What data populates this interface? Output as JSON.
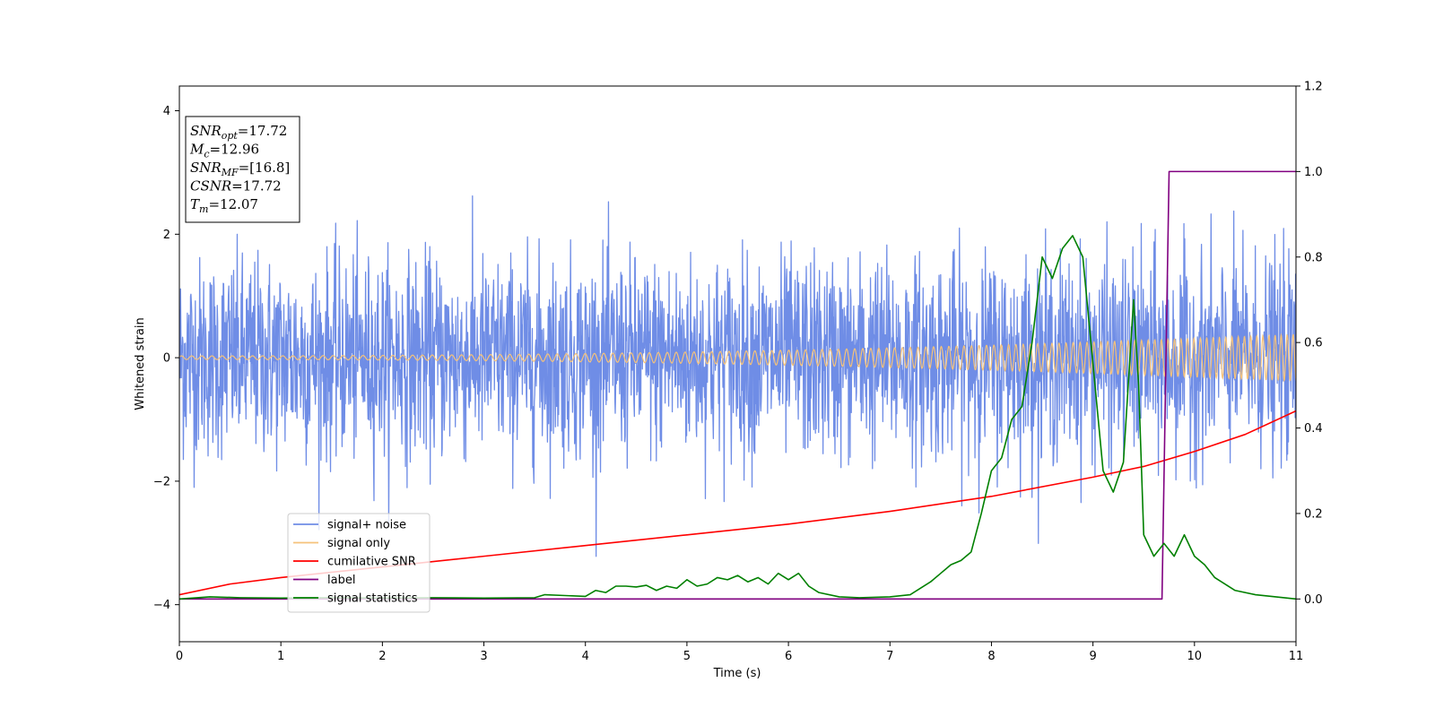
{
  "chart_data": {
    "type": "line",
    "title": "",
    "xlabel": "Time (s)",
    "ylabel": "Whitened strain",
    "y2label": "",
    "xlim": [
      0,
      11
    ],
    "ylim": [
      -4.6,
      4.4
    ],
    "y2lim": [
      -0.1,
      1.2
    ],
    "xticks": [
      "0",
      "1",
      "2",
      "3",
      "4",
      "5",
      "6",
      "7",
      "8",
      "9",
      "10",
      "11"
    ],
    "yticks": [
      "−4",
      "−2",
      "0",
      "2",
      "4"
    ],
    "y2ticks": [
      "0.0",
      "0.2",
      "0.4",
      "0.6",
      "0.8",
      "1.0",
      "1.2"
    ],
    "grid": false,
    "legend_position": "lower-left",
    "annotation": {
      "lines": [
        {
          "sym": "SNR",
          "sub": "opt",
          "val": "=17.72"
        },
        {
          "sym": "M",
          "sub": "c",
          "val": "=12.96"
        },
        {
          "sym": "SNR",
          "sub": "MF",
          "val": "=[16.8]"
        },
        {
          "sym": "CSNR",
          "sub": "",
          "val": "=17.72"
        },
        {
          "sym": "T",
          "sub": "m",
          "val": "=12.07"
        }
      ]
    },
    "series": [
      {
        "name": "signal+ noise",
        "color": "#6f8de6",
        "axis": "left",
        "kind": "noise",
        "std": 0.8,
        "range": [
          -4.0,
          4.0
        ]
      },
      {
        "name": "signal only",
        "color": "#f5c27a",
        "axis": "left",
        "kind": "chirp",
        "amp_start": 0.03,
        "amp_end": 0.38
      },
      {
        "name": "cumilative SNR",
        "color": "#ff0000",
        "axis": "right",
        "x": [
          0,
          0.5,
          1,
          2,
          3,
          4,
          5,
          6,
          7,
          8,
          9,
          9.5,
          10,
          10.5,
          11
        ],
        "y": [
          0.01,
          0.035,
          0.05,
          0.075,
          0.1,
          0.125,
          0.15,
          0.175,
          0.205,
          0.24,
          0.285,
          0.31,
          0.345,
          0.385,
          0.44
        ]
      },
      {
        "name": "label",
        "color": "#800080",
        "axis": "right",
        "x": [
          0,
          9.68,
          9.75,
          11
        ],
        "y": [
          0.0,
          0.0,
          1.0,
          1.0
        ]
      },
      {
        "name": "signal statistics",
        "color": "#008000",
        "axis": "right",
        "x": [
          0,
          0.3,
          0.6,
          1.0,
          1.5,
          2.0,
          2.5,
          3.0,
          3.5,
          3.6,
          3.8,
          4.0,
          4.1,
          4.2,
          4.3,
          4.4,
          4.5,
          4.6,
          4.7,
          4.8,
          4.9,
          5.0,
          5.1,
          5.2,
          5.3,
          5.4,
          5.5,
          5.6,
          5.7,
          5.8,
          5.9,
          6.0,
          6.1,
          6.2,
          6.3,
          6.5,
          6.7,
          7.0,
          7.2,
          7.4,
          7.5,
          7.6,
          7.7,
          7.8,
          7.9,
          8.0,
          8.1,
          8.2,
          8.3,
          8.4,
          8.5,
          8.6,
          8.7,
          8.8,
          8.9,
          9.0,
          9.1,
          9.2,
          9.3,
          9.4,
          9.45,
          9.5,
          9.6,
          9.7,
          9.8,
          9.9,
          10.0,
          10.1,
          10.2,
          10.4,
          10.6,
          10.8,
          11.0
        ],
        "y": [
          0.0,
          0.005,
          0.003,
          0.002,
          0.003,
          0.002,
          0.003,
          0.002,
          0.003,
          0.01,
          0.008,
          0.006,
          0.02,
          0.015,
          0.03,
          0.03,
          0.028,
          0.032,
          0.02,
          0.03,
          0.025,
          0.045,
          0.03,
          0.035,
          0.05,
          0.045,
          0.055,
          0.04,
          0.05,
          0.035,
          0.06,
          0.045,
          0.06,
          0.03,
          0.015,
          0.005,
          0.003,
          0.005,
          0.01,
          0.04,
          0.06,
          0.08,
          0.09,
          0.11,
          0.2,
          0.3,
          0.33,
          0.42,
          0.45,
          0.6,
          0.8,
          0.75,
          0.82,
          0.85,
          0.8,
          0.55,
          0.3,
          0.25,
          0.32,
          0.7,
          0.5,
          0.15,
          0.1,
          0.13,
          0.1,
          0.15,
          0.1,
          0.08,
          0.05,
          0.02,
          0.01,
          0.005,
          0.0
        ]
      }
    ]
  }
}
